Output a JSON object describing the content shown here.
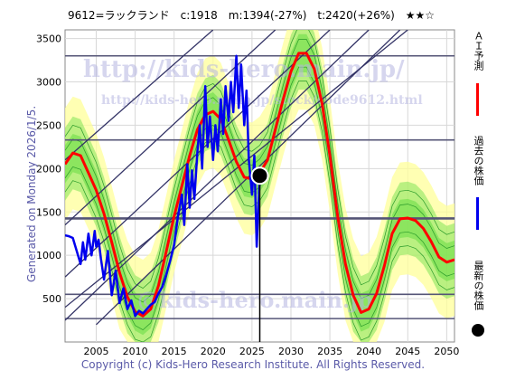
{
  "header": {
    "text": "9612=ラックランド　c:1918　m:1394(-27%)　t:2420(+26%)　★★☆"
  },
  "side_label": "Generated on Monday 2026/1/5.",
  "footer": "Copyright (c) Kids-Hero Research Institute. All Rights Reserved.",
  "watermarks": {
    "url1": "http://kids-hero.main.jp/",
    "url2": "http://kids-hero.main.jp/stock/code9612.html",
    "email": "@kids-hero.main.jp"
  },
  "legend": {
    "forecast": "ＡＩ予測",
    "past": "過去の株価",
    "latest": "最新の株価"
  },
  "colors": {
    "forecast": "#ff0000",
    "past": "#0000ee",
    "latest": "#000000",
    "band_outer": "#ffff99",
    "band_inner": "#66dd44",
    "trendlines": "#333366",
    "hlines": "#555577",
    "plot_bg": "#ffffff"
  },
  "chart_data": {
    "type": "line",
    "title": "",
    "xlabel": "",
    "ylabel": "",
    "xlim": [
      2001,
      2051
    ],
    "ylim": [
      0,
      3600
    ],
    "x_ticks": [
      2005,
      2010,
      2015,
      2020,
      2025,
      2030,
      2035,
      2040,
      2045,
      2050
    ],
    "y_ticks": [
      500,
      1000,
      1500,
      2000,
      2500,
      3000,
      3500
    ],
    "grid": true,
    "horizontal_levels": [
      270,
      550,
      1420,
      1430,
      2330,
      3300
    ],
    "latest": {
      "x": 2026.0,
      "y": 1918
    },
    "trendlines": [
      {
        "x0": 2001,
        "y0": 250,
        "x1": 2040,
        "y1": 3600
      },
      {
        "x0": 2005,
        "y0": 200,
        "x1": 2044,
        "y1": 3600
      },
      {
        "x0": 2001,
        "y0": 750,
        "x1": 2035,
        "y1": 3600
      },
      {
        "x0": 2001,
        "y0": 1350,
        "x1": 2028,
        "y1": 3600
      },
      {
        "x0": 2001,
        "y0": 2100,
        "x1": 2020,
        "y1": 3600
      },
      {
        "x0": 2001,
        "y0": 400,
        "x1": 2045,
        "y1": 3600
      }
    ],
    "series": [
      {
        "name": "ＡＩ予測",
        "x": [
          2001,
          2002,
          2003,
          2004,
          2005,
          2006,
          2007,
          2008,
          2009,
          2010,
          2011,
          2012,
          2013,
          2014,
          2015,
          2016,
          2017,
          2018,
          2019,
          2020,
          2021,
          2022,
          2023,
          2024,
          2025,
          2026,
          2027,
          2028,
          2029,
          2030,
          2031,
          2032,
          2033,
          2034,
          2035,
          2036,
          2037,
          2038,
          2039,
          2040,
          2041,
          2042,
          2043,
          2044,
          2045,
          2046,
          2047,
          2048,
          2049,
          2050,
          2051
        ],
        "y": [
          2050,
          2180,
          2150,
          1950,
          1750,
          1480,
          1150,
          800,
          520,
          350,
          300,
          380,
          650,
          1050,
          1450,
          1800,
          2150,
          2450,
          2620,
          2660,
          2570,
          2330,
          2080,
          1900,
          1880,
          1950,
          2100,
          2450,
          2800,
          3120,
          3330,
          3330,
          3150,
          2750,
          2150,
          1450,
          900,
          540,
          340,
          380,
          560,
          880,
          1250,
          1420,
          1430,
          1400,
          1310,
          1160,
          980,
          920,
          950
        ]
      },
      {
        "name": "過去の株価",
        "x": [
          2001.0,
          2001.5,
          2002.0,
          2003.0,
          2003.3,
          2003.6,
          2004.0,
          2004.4,
          2004.8,
          2005.0,
          2005.3,
          2005.6,
          2006.0,
          2006.5,
          2007.0,
          2007.5,
          2008.0,
          2008.5,
          2009.0,
          2009.5,
          2010.0,
          2010.5,
          2011.0,
          2011.5,
          2012.0,
          2012.5,
          2013.0,
          2013.5,
          2014.0,
          2014.5,
          2015.0,
          2015.5,
          2016.0,
          2016.3,
          2016.7,
          2017.0,
          2017.3,
          2017.6,
          2018.0,
          2018.3,
          2018.6,
          2019.0,
          2019.3,
          2019.6,
          2020.0,
          2020.3,
          2020.6,
          2021.0,
          2021.3,
          2021.6,
          2022.0,
          2022.3,
          2022.6,
          2023.0,
          2023.3,
          2023.6,
          2024.0,
          2024.3,
          2024.6,
          2025.0,
          2025.3,
          2025.6,
          2026.0
        ],
        "y": [
          1230,
          1220,
          1200,
          900,
          1150,
          950,
          1250,
          1000,
          1280,
          1100,
          1180,
          960,
          720,
          1050,
          540,
          820,
          450,
          620,
          380,
          480,
          300,
          360,
          330,
          380,
          430,
          460,
          560,
          640,
          780,
          940,
          1120,
          1450,
          1700,
          1350,
          2050,
          1550,
          1980,
          1650,
          2200,
          2500,
          2000,
          2950,
          2250,
          2600,
          2100,
          2500,
          2200,
          2800,
          2400,
          2950,
          2550,
          3000,
          2650,
          3300,
          2700,
          3200,
          2500,
          2900,
          2100,
          1700,
          2150,
          1100,
          1918
        ]
      }
    ]
  }
}
